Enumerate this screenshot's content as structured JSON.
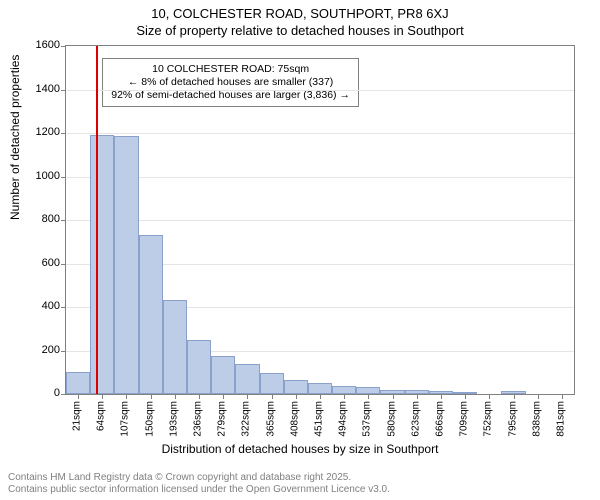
{
  "chart": {
    "type": "histogram",
    "title_line1": "10, COLCHESTER ROAD, SOUTHPORT, PR8 6XJ",
    "title_line2": "Size of property relative to detached houses in Southport",
    "title_fontsize": 13,
    "y_label": "Number of detached properties",
    "x_label": "Distribution of detached houses by size in Southport",
    "axis_label_fontsize": 12,
    "tick_fontsize": 11,
    "background_color": "#ffffff",
    "grid_color": "#e5e5e5",
    "border_color": "#808080",
    "bar_fill": "#becde7",
    "bar_border": "#8aa2cb",
    "marker_color": "#dc0000",
    "ylim": [
      0,
      1600
    ],
    "ytick_step": 200,
    "yticks": [
      0,
      200,
      400,
      600,
      800,
      1000,
      1200,
      1400,
      1600
    ],
    "xticks": [
      "21sqm",
      "64sqm",
      "107sqm",
      "150sqm",
      "193sqm",
      "236sqm",
      "279sqm",
      "322sqm",
      "365sqm",
      "408sqm",
      "451sqm",
      "494sqm",
      "537sqm",
      "580sqm",
      "623sqm",
      "666sqm",
      "709sqm",
      "752sqm",
      "795sqm",
      "838sqm",
      "881sqm"
    ],
    "bars": [
      100,
      1190,
      1185,
      730,
      430,
      250,
      175,
      140,
      95,
      65,
      50,
      35,
      30,
      20,
      20,
      15,
      10,
      0,
      15,
      0,
      0
    ],
    "marker_index": 1.25,
    "callout": {
      "line1": "10 COLCHESTER ROAD: 75sqm",
      "line2": "← 8% of detached houses are smaller (337)",
      "line3": "92% of semi-detached houses are larger (3,836) →",
      "border_color": "#808080",
      "bg_color": "#ffffff",
      "fontsize": 10.5
    }
  },
  "footer": {
    "line1": "Contains HM Land Registry data © Crown copyright and database right 2025.",
    "line2": "Contains public sector information licensed under the Open Government Licence v3.0.",
    "color": "#808080",
    "fontsize": 10
  }
}
